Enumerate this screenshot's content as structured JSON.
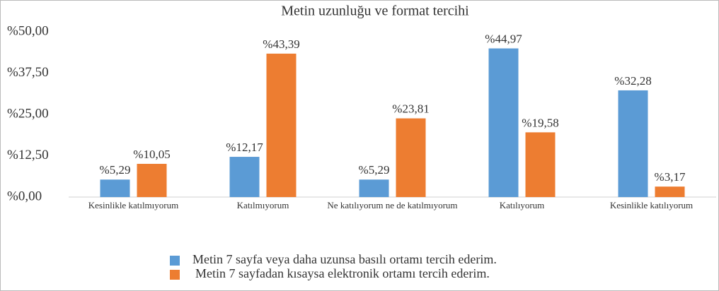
{
  "chart_data": {
    "type": "bar",
    "title": "Metin uzunluğu ve format tercihi",
    "categories": [
      "Kesinlikle katılmıyorum",
      "Katılmıyorum",
      "Ne katılıyorum ne de katılmıyorum",
      "Katılıyorum",
      "Kesinlikle katılıyorum"
    ],
    "series": [
      {
        "name": "Metin 7 sayfa veya daha uzunsa basılı ortamı tercih ederim.",
        "color": "#5b9bd5",
        "values": [
          5.29,
          12.17,
          5.29,
          44.97,
          32.28
        ],
        "value_labels": [
          "%5,29",
          "%12,17",
          "%5,29",
          "%44,97",
          "%32,28"
        ]
      },
      {
        "name": "Metin 7 sayfadan kısaysa elektronik ortamı tercih ederim.",
        "color": "#ed7d31",
        "values": [
          10.05,
          43.39,
          23.81,
          19.58,
          3.17
        ],
        "value_labels": [
          "%10,05",
          "%43,39",
          "%23,81",
          "%19,58",
          "%3,17"
        ]
      }
    ],
    "ylim": [
      0,
      50
    ],
    "yticks": [
      {
        "value": 0,
        "label": "%0,00"
      },
      {
        "value": 12.5,
        "label": "%12,50"
      },
      {
        "value": 25,
        "label": "%25,00"
      },
      {
        "value": 37.5,
        "label": "%37,50"
      },
      {
        "value": 50,
        "label": "%50,00"
      }
    ],
    "grid": false,
    "legend": "bottom"
  }
}
